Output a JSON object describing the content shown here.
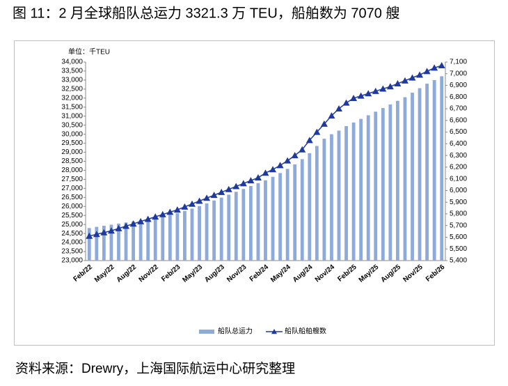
{
  "chart_data": {
    "type": "bar_line",
    "title": "图 11：2 月全球船队总运力 3321.3 万 TEU，船舶数为 7070 艘",
    "unit_label": "单位：千TEU",
    "source": "资料来源：Drewry，上海国际航运中心研究整理",
    "categories": [
      "Feb/22",
      null,
      null,
      "May/22",
      null,
      null,
      "Aug/22",
      null,
      null,
      "Nov/22",
      null,
      null,
      "Feb/23",
      null,
      null,
      "May/23",
      null,
      null,
      "Aug/23",
      null,
      null,
      "Nov/23",
      null,
      null,
      "Feb/24",
      null,
      null,
      "May/24",
      null,
      null,
      "Aug/24",
      null,
      null,
      "Nov/24",
      null,
      null,
      "Feb/25",
      null,
      null,
      "May/25",
      null,
      null,
      "Aug/25",
      null,
      null,
      "Nov/25",
      null,
      null,
      "Feb/26"
    ],
    "series": [
      {
        "name": "船队总运力",
        "type": "bar",
        "color": "#8eaadb",
        "axis": "y",
        "values": [
          24800,
          24870,
          24930,
          24990,
          25050,
          25110,
          25170,
          25230,
          25290,
          25350,
          25430,
          25520,
          25620,
          25750,
          25880,
          26020,
          26170,
          26330,
          26490,
          26650,
          26810,
          26970,
          27130,
          27290,
          27450,
          27640,
          27850,
          28080,
          28330,
          28620,
          28950,
          29350,
          29750,
          30000,
          30200,
          30450,
          30650,
          30850,
          31050,
          31250,
          31450,
          31650,
          31850,
          32050,
          32300,
          32550,
          32800,
          33000,
          33213
        ]
      },
      {
        "name": "船队船舶艘数",
        "type": "line",
        "color": "#1f3a9e",
        "axis": "y2",
        "values": [
          5610,
          5625,
          5640,
          5655,
          5675,
          5695,
          5715,
          5735,
          5755,
          5775,
          5795,
          5815,
          5835,
          5860,
          5885,
          5910,
          5935,
          5960,
          5985,
          6010,
          6035,
          6060,
          6085,
          6110,
          6150,
          6180,
          6215,
          6255,
          6300,
          6350,
          6430,
          6500,
          6570,
          6640,
          6700,
          6750,
          6790,
          6810,
          6830,
          6850,
          6870,
          6890,
          6915,
          6940,
          6965,
          6990,
          7020,
          7050,
          7070
        ]
      }
    ],
    "ylim": [
      23000,
      34000
    ],
    "yticks": [
      {
        "value": 23000,
        "label": "23,000"
      },
      {
        "value": 23500,
        "label": "23,500"
      },
      {
        "value": 24000,
        "label": "24,000"
      },
      {
        "value": 24500,
        "label": "24,500"
      },
      {
        "value": 25000,
        "label": "25,000"
      },
      {
        "value": 25500,
        "label": "25,500"
      },
      {
        "value": 26000,
        "label": "26,000"
      },
      {
        "value": 26500,
        "label": "26,500"
      },
      {
        "value": 27000,
        "label": "27,000"
      },
      {
        "value": 27500,
        "label": "27,500"
      },
      {
        "value": 28000,
        "label": "28,000"
      },
      {
        "value": 28500,
        "label": "28,500"
      },
      {
        "value": 29000,
        "label": "29,000"
      },
      {
        "value": 29500,
        "label": "29,500"
      },
      {
        "value": 30000,
        "label": "30,000"
      },
      {
        "value": 30500,
        "label": "30,500"
      },
      {
        "value": 31000,
        "label": "31,000"
      },
      {
        "value": 31500,
        "label": "31,500"
      },
      {
        "value": 32000,
        "label": "32,000"
      },
      {
        "value": 32500,
        "label": "32,500"
      },
      {
        "value": 33000,
        "label": "33,000"
      },
      {
        "value": 33500,
        "label": "33,500"
      },
      {
        "value": 34000,
        "label": "34,000"
      }
    ],
    "y2lim": [
      5400,
      7100
    ],
    "y2ticks": [
      {
        "value": 5400,
        "label": "5,400"
      },
      {
        "value": 5500,
        "label": "5,500"
      },
      {
        "value": 5600,
        "label": "5,600"
      },
      {
        "value": 5700,
        "label": "5,700"
      },
      {
        "value": 5800,
        "label": "5,800"
      },
      {
        "value": 5900,
        "label": "5,900"
      },
      {
        "value": 6000,
        "label": "6,000"
      },
      {
        "value": 6100,
        "label": "6,100"
      },
      {
        "value": 6200,
        "label": "6,200"
      },
      {
        "value": 6300,
        "label": "6,300"
      },
      {
        "value": 6400,
        "label": "6,400"
      },
      {
        "value": 6500,
        "label": "6,500"
      },
      {
        "value": 6600,
        "label": "6,600"
      },
      {
        "value": 6700,
        "label": "6,700"
      },
      {
        "value": 6800,
        "label": "6,800"
      },
      {
        "value": 6900,
        "label": "6,900"
      },
      {
        "value": 7000,
        "label": "7,000"
      },
      {
        "value": 7100,
        "label": "7,100"
      }
    ],
    "grid": false,
    "legend": "bottom"
  }
}
